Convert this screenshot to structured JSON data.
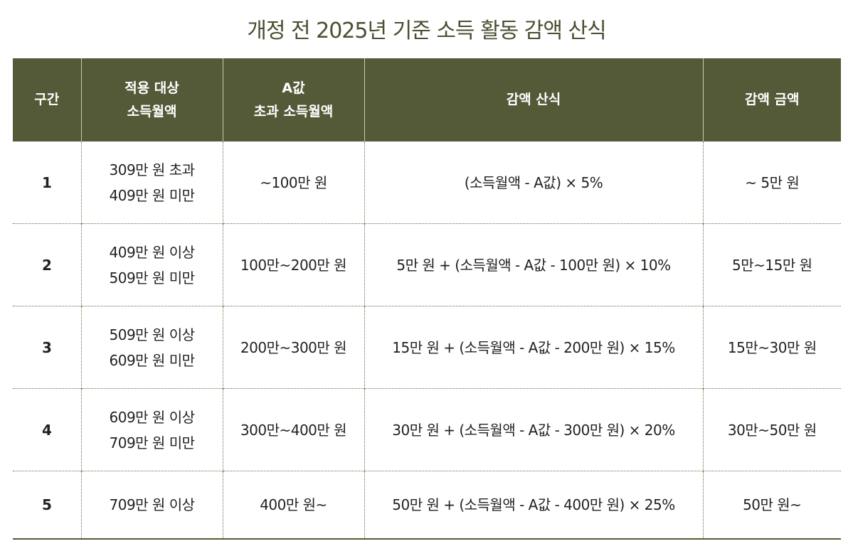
{
  "title": "개정 전 2025년 기준 소득 활동 감액 산식",
  "colors": {
    "header_bg": "#545a38",
    "border": "#6b6e4a"
  },
  "table": {
    "headers": [
      "구간",
      "적용 대상\n소득월액",
      "A값\n초과 소득월액",
      "감액 산식",
      "감액 금액"
    ],
    "rows": [
      [
        "1",
        "309만 원 초과\n409만 원 미만",
        "~100만 원",
        "(소득월액 - A값) × 5%",
        "~ 5만 원"
      ],
      [
        "2",
        "409만 원 이상\n509만 원 미만",
        "100만~200만 원",
        "5만 원 + (소득월액 - A값 - 100만 원) × 10%",
        "5만~15만 원"
      ],
      [
        "3",
        "509만 원 이상\n609만 원 미만",
        "200만~300만 원",
        "15만 원 + (소득월액 - A값 - 200만 원) × 15%",
        "15만~30만 원"
      ],
      [
        "4",
        "609만 원 이상\n709만 원 미만",
        "300만~400만 원",
        "30만 원 + (소득월액 - A값 - 300만 원) × 20%",
        "30만~50만 원"
      ],
      [
        "5",
        "709만 원 이상",
        "400만 원~",
        "50만 원 + (소득월액 - A값 - 400만 원) × 25%",
        "50만 원~"
      ]
    ]
  }
}
